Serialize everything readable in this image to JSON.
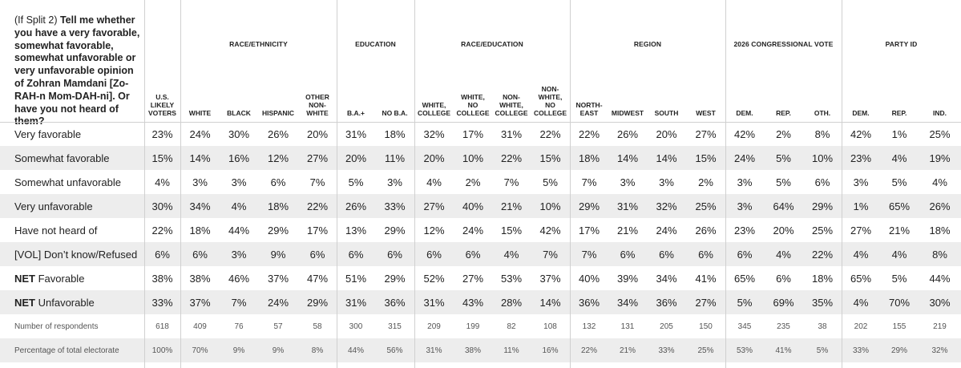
{
  "question": {
    "prefix": "(If Split 2) ",
    "text": "Tell me whether you have a very favorable, somewhat favorable, somewhat unfavorable or very unfavorable opinion of Zohran Mamdani [Zo-RAH-n Mom-DAH-ni]. Or have you not heard of them?"
  },
  "groups": [
    {
      "label": "",
      "span": [
        0,
        0
      ]
    },
    {
      "label": "RACE/ETHNICITY",
      "span": [
        1,
        4
      ]
    },
    {
      "label": "EDUCATION",
      "span": [
        5,
        6
      ]
    },
    {
      "label": "RACE/EDUCATION",
      "span": [
        7,
        10
      ]
    },
    {
      "label": "REGION",
      "span": [
        11,
        14
      ]
    },
    {
      "label": "2026 CONGRESSIONAL VOTE",
      "span": [
        15,
        17
      ]
    },
    {
      "label": "PARTY ID",
      "span": [
        18,
        20
      ]
    }
  ],
  "columns": [
    "U.S.\nLIKELY\nVOTERS",
    "WHITE",
    "BLACK",
    "HISPANIC",
    "OTHER\nNON-\nWHITE",
    "B.A.+",
    "NO B.A.",
    "WHITE,\nCOLLEGE",
    "WHITE,\nNO\nCOLLEGE",
    "NON-\nWHITE,\nCOLLEGE",
    "NON-\nWHITE,\nNO\nCOLLEGE",
    "NORTH-\nEAST",
    "MIDWEST",
    "SOUTH",
    "WEST",
    "DEM.",
    "REP.",
    "OTH.",
    "DEM.",
    "REP.",
    "IND."
  ],
  "rows": [
    {
      "prefix": "",
      "label": "Very favorable",
      "values": [
        "23%",
        "24%",
        "30%",
        "26%",
        "20%",
        "31%",
        "18%",
        "32%",
        "17%",
        "31%",
        "22%",
        "22%",
        "26%",
        "20%",
        "27%",
        "42%",
        "2%",
        "8%",
        "42%",
        "1%",
        "25%"
      ]
    },
    {
      "prefix": "",
      "label": "Somewhat favorable",
      "values": [
        "15%",
        "14%",
        "16%",
        "12%",
        "27%",
        "20%",
        "11%",
        "20%",
        "10%",
        "22%",
        "15%",
        "18%",
        "14%",
        "14%",
        "15%",
        "24%",
        "5%",
        "10%",
        "23%",
        "4%",
        "19%"
      ]
    },
    {
      "prefix": "",
      "label": "Somewhat unfavorable",
      "values": [
        "4%",
        "3%",
        "3%",
        "6%",
        "7%",
        "5%",
        "3%",
        "4%",
        "2%",
        "7%",
        "5%",
        "7%",
        "3%",
        "3%",
        "2%",
        "3%",
        "5%",
        "6%",
        "3%",
        "5%",
        "4%"
      ]
    },
    {
      "prefix": "",
      "label": "Very unfavorable",
      "values": [
        "30%",
        "34%",
        "4%",
        "18%",
        "22%",
        "26%",
        "33%",
        "27%",
        "40%",
        "21%",
        "10%",
        "29%",
        "31%",
        "32%",
        "25%",
        "3%",
        "64%",
        "29%",
        "1%",
        "65%",
        "26%"
      ]
    },
    {
      "prefix": "",
      "label": "Have not heard of",
      "values": [
        "22%",
        "18%",
        "44%",
        "29%",
        "17%",
        "13%",
        "29%",
        "12%",
        "24%",
        "15%",
        "42%",
        "17%",
        "21%",
        "24%",
        "26%",
        "23%",
        "20%",
        "25%",
        "27%",
        "21%",
        "18%"
      ]
    },
    {
      "prefix": "",
      "label": "[VOL] Don’t know/Refused",
      "values": [
        "6%",
        "6%",
        "3%",
        "9%",
        "6%",
        "6%",
        "6%",
        "6%",
        "6%",
        "4%",
        "7%",
        "7%",
        "6%",
        "6%",
        "6%",
        "6%",
        "4%",
        "22%",
        "4%",
        "4%",
        "8%"
      ]
    },
    {
      "prefix": "NET",
      "label": " Favorable",
      "values": [
        "38%",
        "38%",
        "46%",
        "37%",
        "47%",
        "51%",
        "29%",
        "52%",
        "27%",
        "53%",
        "37%",
        "40%",
        "39%",
        "34%",
        "41%",
        "65%",
        "6%",
        "18%",
        "65%",
        "5%",
        "44%"
      ]
    },
    {
      "prefix": "NET",
      "label": " Unfavorable",
      "values": [
        "33%",
        "37%",
        "7%",
        "24%",
        "29%",
        "31%",
        "36%",
        "31%",
        "43%",
        "28%",
        "14%",
        "36%",
        "34%",
        "36%",
        "27%",
        "5%",
        "69%",
        "35%",
        "4%",
        "70%",
        "30%"
      ]
    },
    {
      "prefix": "",
      "label": "Number of respondents",
      "small": true,
      "values": [
        "618",
        "409",
        "76",
        "57",
        "58",
        "300",
        "315",
        "209",
        "199",
        "82",
        "108",
        "132",
        "131",
        "205",
        "150",
        "345",
        "235",
        "38",
        "202",
        "155",
        "219"
      ]
    },
    {
      "prefix": "",
      "label": "Percentage of total electorate",
      "small": true,
      "values": [
        "100%",
        "70%",
        "9%",
        "9%",
        "8%",
        "44%",
        "56%",
        "31%",
        "38%",
        "11%",
        "16%",
        "22%",
        "21%",
        "33%",
        "25%",
        "53%",
        "41%",
        "5%",
        "33%",
        "29%",
        "32%"
      ]
    }
  ]
}
